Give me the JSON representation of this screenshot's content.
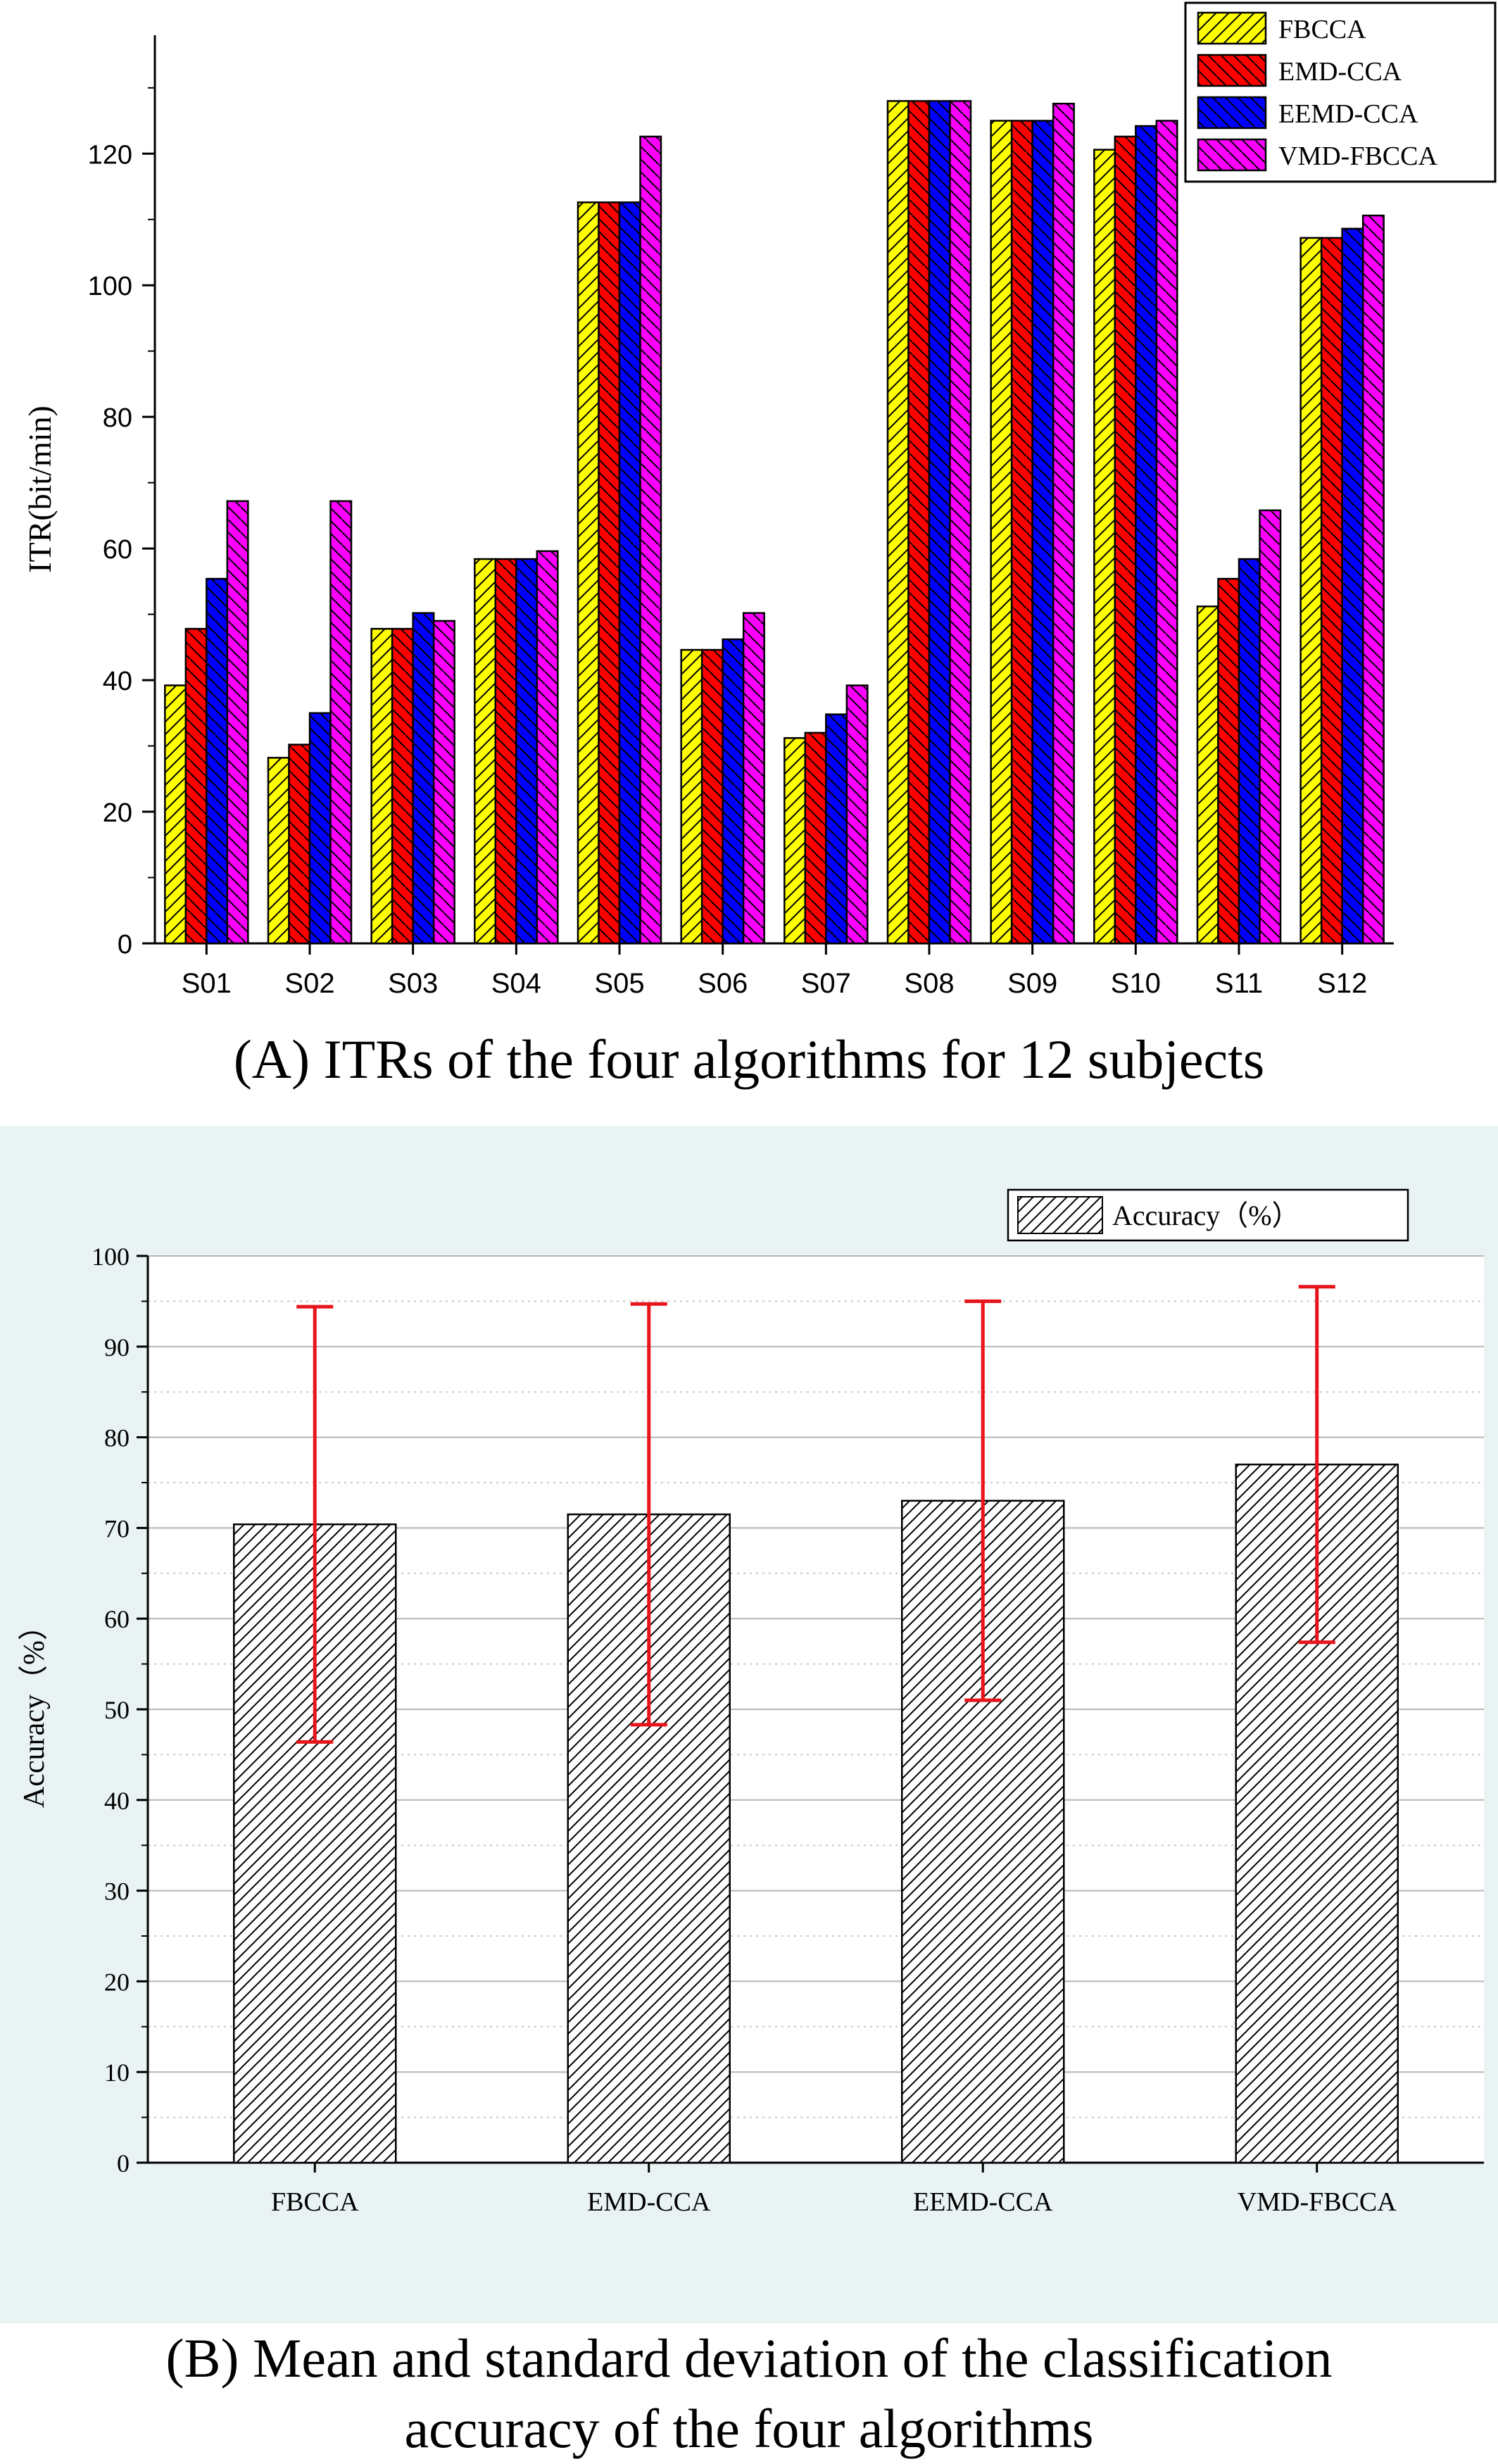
{
  "chart_data": [
    {
      "type": "bar",
      "caption": "(A) ITRs of the four algorithms for 12 subjects",
      "ylabel": "ITR(bit/min)",
      "xlabel": "",
      "ylim": [
        0,
        138
      ],
      "yticks": [
        0,
        20,
        40,
        60,
        80,
        100,
        120
      ],
      "categories": [
        "S01",
        "S02",
        "S03",
        "S04",
        "S05",
        "S06",
        "S07",
        "S08",
        "S09",
        "S10",
        "S11",
        "S12"
      ],
      "legend_position": "top-right",
      "series": [
        {
          "name": "FBCCA",
          "color": "#ffff00",
          "values": [
            39.2,
            28.2,
            47.8,
            58.4,
            112.6,
            44.6,
            31.2,
            128.0,
            125.0,
            120.6,
            51.2,
            107.2
          ]
        },
        {
          "name": "EMD-CCA",
          "color": "#ff0000",
          "values": [
            47.8,
            30.2,
            47.8,
            58.4,
            112.6,
            44.6,
            32.0,
            128.0,
            125.0,
            122.6,
            55.4,
            107.2
          ]
        },
        {
          "name": "EEMD-CCA",
          "color": "#0000ff",
          "values": [
            55.4,
            35.0,
            50.2,
            58.4,
            112.6,
            46.2,
            34.8,
            128.0,
            125.0,
            124.2,
            58.4,
            108.6
          ]
        },
        {
          "name": "VMD-FBCCA",
          "color": "#ff00ff",
          "values": [
            67.2,
            67.2,
            49.0,
            59.6,
            122.6,
            50.2,
            39.2,
            128.0,
            127.6,
            125.0,
            65.8,
            110.6
          ]
        }
      ]
    },
    {
      "type": "bar",
      "caption_lines": [
        "(B) Mean and standard deviation of the classification",
        "accuracy of the four algorithms"
      ],
      "ylabel": "Accuracy（%）",
      "xlabel": "",
      "ylim": [
        0,
        100
      ],
      "yticks": [
        0,
        10,
        20,
        30,
        40,
        50,
        60,
        70,
        80,
        90,
        100
      ],
      "grid": true,
      "categories": [
        "FBCCA",
        "EMD-CCA",
        "EEMD-CCA",
        "VMD-FBCCA"
      ],
      "legend_position": "top-right",
      "error_bar_color": "#e8141b",
      "series": [
        {
          "name": "Accuracy（%）",
          "values": [
            70.4,
            71.5,
            73.0,
            77.0
          ],
          "errors": [
            24.0,
            23.2,
            22.0,
            19.6
          ]
        }
      ]
    }
  ]
}
